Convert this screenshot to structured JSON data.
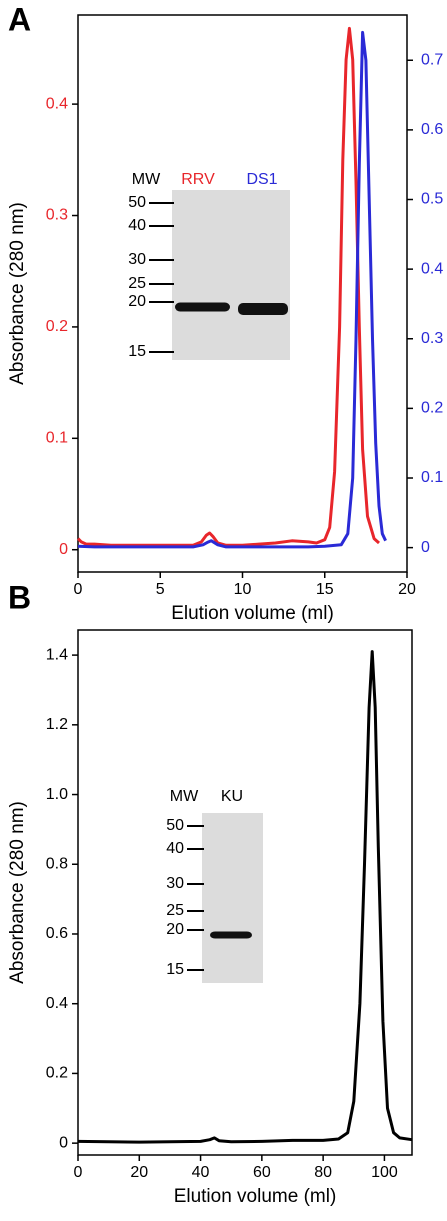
{
  "chart_data": [
    {
      "type": "line",
      "panel_label": "A",
      "x_label": "Elution volume (ml)",
      "y_label": "Absorbance (280 nm)",
      "xlim": [
        0,
        20
      ],
      "xticks": [
        0,
        5,
        10,
        15,
        20
      ],
      "ylim": [
        -0.02,
        0.48
      ],
      "yticks": [
        0,
        0.1,
        0.2,
        0.3,
        0.4
      ],
      "y_tick_color": "#e8262b",
      "y2lim": [
        -0.035,
        0.765
      ],
      "y2ticks": [
        0,
        0.1,
        0.2,
        0.3,
        0.4,
        0.5,
        0.6,
        0.7
      ],
      "y2_tick_color": "#2a2ad6",
      "series": [
        {
          "name": "RRV",
          "color": "#e8262b",
          "x": [
            0,
            0.2,
            0.5,
            1,
            2,
            3,
            4,
            5,
            6,
            7,
            7.5,
            7.8,
            8,
            8.2,
            8.5,
            9,
            10,
            11,
            12,
            13,
            14,
            14.5,
            15,
            15.3,
            15.6,
            15.9,
            16.1,
            16.3,
            16.5,
            16.7,
            16.9,
            17.1,
            17.3,
            17.6,
            18,
            18.3
          ],
          "values": [
            0.01,
            0.007,
            0.005,
            0.005,
            0.004,
            0.004,
            0.004,
            0.004,
            0.004,
            0.004,
            0.007,
            0.013,
            0.015,
            0.012,
            0.006,
            0.004,
            0.004,
            0.005,
            0.006,
            0.008,
            0.007,
            0.006,
            0.009,
            0.02,
            0.07,
            0.2,
            0.35,
            0.44,
            0.468,
            0.44,
            0.33,
            0.2,
            0.09,
            0.03,
            0.01,
            0.006
          ]
        },
        {
          "name": "DS1",
          "color": "#2a2ad6",
          "axis": "y2",
          "x": [
            0,
            1,
            3,
            5,
            7,
            7.6,
            7.9,
            8.1,
            8.5,
            9,
            10,
            12,
            14,
            15,
            16,
            16.4,
            16.7,
            16.9,
            17.1,
            17.3,
            17.5,
            17.7,
            17.9,
            18.1,
            18.3,
            18.5,
            18.7
          ],
          "values": [
            0.002,
            0.001,
            0.001,
            0.001,
            0.001,
            0.004,
            0.008,
            0.01,
            0.004,
            0.001,
            0.001,
            0.001,
            0.001,
            0.002,
            0.004,
            0.02,
            0.1,
            0.3,
            0.55,
            0.74,
            0.7,
            0.5,
            0.3,
            0.15,
            0.06,
            0.02,
            0.01
          ]
        }
      ],
      "inset": {
        "mw_label": "MW",
        "mw_markers": [
          "50",
          "40",
          "30",
          "25",
          "20",
          "15"
        ],
        "lanes": [
          "RRV",
          "DS1"
        ],
        "lane_colors": [
          "#e8262b",
          "#2a2ad6"
        ]
      }
    },
    {
      "type": "line",
      "panel_label": "B",
      "x_label": "Elution volume (ml)",
      "y_label": "Absorbance (280 nm)",
      "xlim": [
        0,
        109
      ],
      "xticks": [
        0,
        20,
        40,
        60,
        80,
        100
      ],
      "ylim": [
        -0.034,
        1.472
      ],
      "yticks": [
        0,
        0.2,
        0.4,
        0.6,
        0.8,
        {
          "value": 1,
          "label": "1.0"
        },
        1.2,
        1.4
      ],
      "y_tick_color": "#000000",
      "series": [
        {
          "name": "KU",
          "color": "#000000",
          "x": [
            0,
            10,
            20,
            30,
            40,
            43,
            44.5,
            46,
            50,
            60,
            70,
            80,
            85,
            88,
            90,
            92,
            93.5,
            95,
            96,
            97,
            98,
            99.5,
            101,
            103,
            105,
            109
          ],
          "values": [
            0.005,
            0.004,
            0.003,
            0.004,
            0.005,
            0.01,
            0.015,
            0.007,
            0.004,
            0.005,
            0.008,
            0.008,
            0.012,
            0.03,
            0.12,
            0.4,
            0.8,
            1.25,
            1.41,
            1.25,
            0.85,
            0.35,
            0.1,
            0.03,
            0.015,
            0.01
          ]
        }
      ],
      "inset": {
        "mw_label": "MW",
        "mw_markers": [
          "50",
          "40",
          "30",
          "25",
          "20",
          "15"
        ],
        "lanes": [
          "KU"
        ],
        "lane_colors": [
          "#000000"
        ]
      }
    }
  ]
}
